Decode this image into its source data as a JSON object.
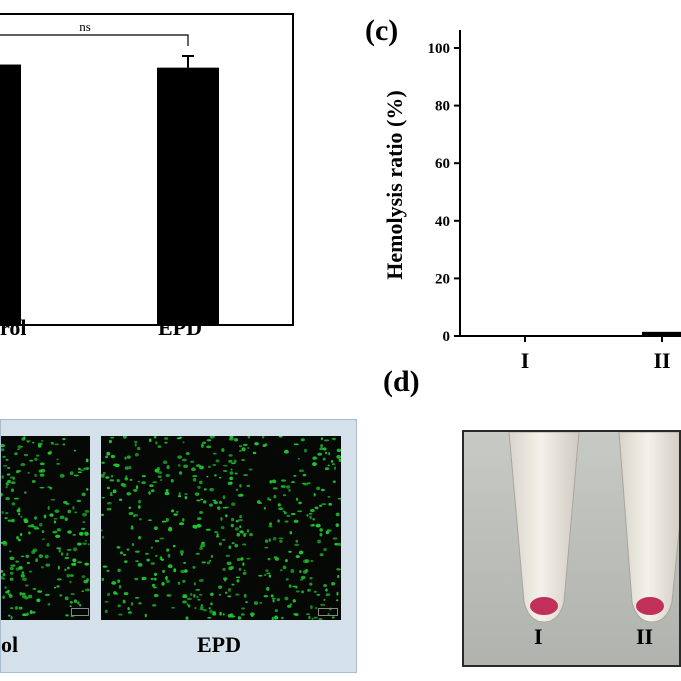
{
  "panels": {
    "c": "(c)",
    "d": "(d)"
  },
  "chart_data": [
    {
      "type": "bar",
      "categories": [
        "rol",
        "EPD"
      ],
      "values": [
        100.5,
        99.3
      ],
      "errors": [
        null,
        4.5
      ],
      "significance": "ns",
      "ylim": [
        0,
        120
      ],
      "color": "#000000"
    },
    {
      "type": "bar",
      "categories": [
        "I",
        "II"
      ],
      "values": [
        0,
        1.1
      ],
      "ylabel": "Hemolysis ratio (%)",
      "yticks": [
        "0",
        "20",
        "40",
        "60",
        "80",
        "100"
      ],
      "ylim": [
        0,
        105
      ],
      "color": "#000000"
    }
  ],
  "micrographs": {
    "left_label": "ol",
    "right_label": "EPD",
    "cell_color": "#22c832",
    "frame_color": "#d4e1ea"
  },
  "tubes": {
    "labels": [
      "I",
      "II"
    ],
    "pellet_color": "#c0305a"
  }
}
